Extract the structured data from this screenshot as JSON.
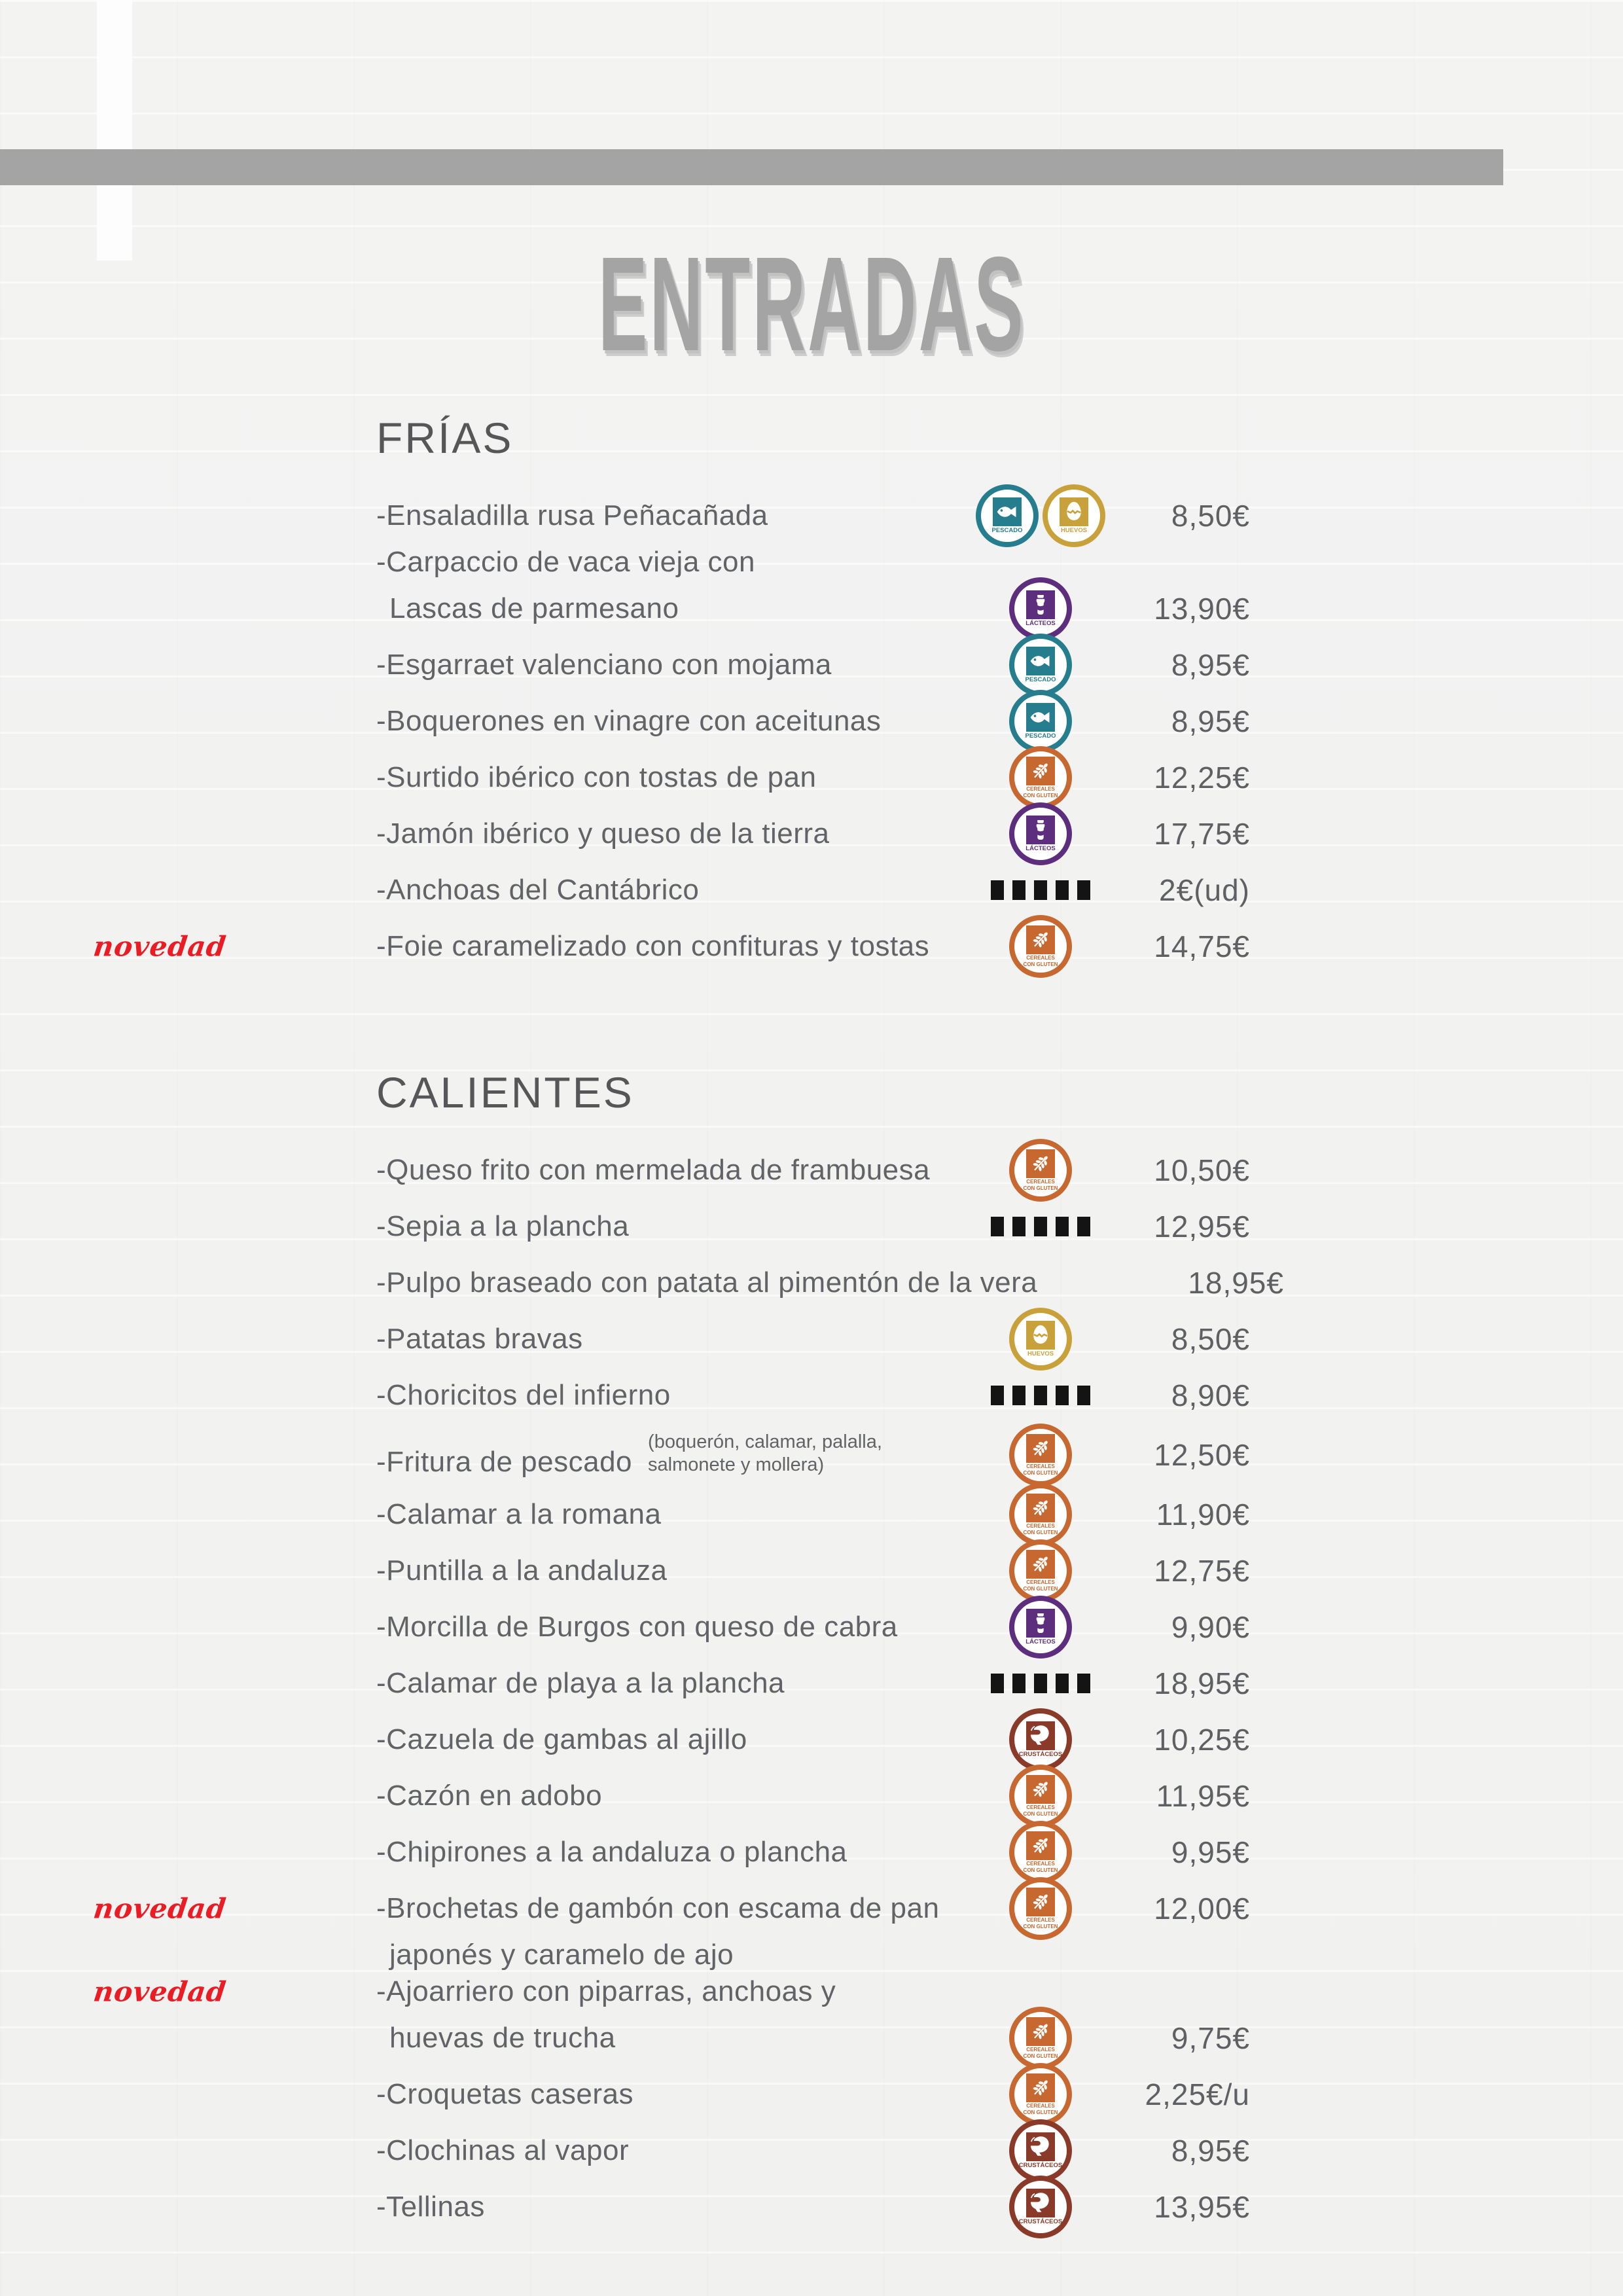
{
  "page": {
    "title": "ENTRADAS"
  },
  "colors": {
    "novedad_red": "#ea1d24",
    "top_bar_gray": "#a4a4a4",
    "title_gray": "#a4a4a4",
    "text_gray": "#616366",
    "pescado": "#257d8e",
    "huevos": "#c9a13b",
    "lacteos": "#5e2e7e",
    "cereales": "#c6682f",
    "crustaceos": "#8a3a28"
  },
  "legend": {
    "pescado": {
      "label": "PESCADO",
      "color": "#257d8e"
    },
    "huevos": {
      "label": "HUEVOS",
      "color": "#c9a13b"
    },
    "lacteos": {
      "label": "LÁCTEOS",
      "color": "#5e2e7e"
    },
    "cereales": {
      "label": "CEREALES",
      "label2": "CON GLUTEN",
      "color": "#c6682f"
    },
    "crustaceos": {
      "label": "CRUSTÁCEOS",
      "color": "#8a3a28"
    }
  },
  "sections": [
    {
      "name": "FRÍAS",
      "items": [
        {
          "name": "-Ensaladilla rusa Peñacañada",
          "allergens": [
            "pescado",
            "huevos"
          ],
          "price": "8,50€"
        },
        {
          "name": "-Carpaccio de vaca vieja con",
          "name2": "Lascas de parmesano",
          "icon_pos": "second",
          "allergens": [
            "lacteos"
          ],
          "price": "13,90€"
        },
        {
          "name": "-Esgarraet valenciano con mojama",
          "allergens": [
            "pescado"
          ],
          "price": "8,95€"
        },
        {
          "name": "-Boquerones en vinagre con aceitunas",
          "allergens": [
            "pescado"
          ],
          "price": "8,95€"
        },
        {
          "name": "-Surtido ibérico con tostas de pan",
          "allergens": [
            "cereales"
          ],
          "price": "12,25€"
        },
        {
          "name": "-Jamón ibérico y queso de la tierra",
          "allergens": [
            "lacteos"
          ],
          "price": "17,75€"
        },
        {
          "name": "-Anchoas del Cantábrico",
          "leader": true,
          "price": "2€(ud)"
        },
        {
          "name": "-Foie caramelizado con confituras y tostas",
          "badge": "novedad",
          "allergens": [
            "cereales"
          ],
          "price": "14,75€"
        }
      ]
    },
    {
      "name": "CALIENTES",
      "items": [
        {
          "name": "-Queso frito con mermelada de frambuesa",
          "allergens": [
            "cereales"
          ],
          "price": "10,50€"
        },
        {
          "name": "-Sepia a la plancha",
          "leader": true,
          "price": "12,95€"
        },
        {
          "name": "-Pulpo braseado con patata al pimentón de la vera",
          "price": "18,95€"
        },
        {
          "name": "-Patatas bravas",
          "allergens": [
            "huevos"
          ],
          "price": "8,50€"
        },
        {
          "name": "-Choricitos del infierno",
          "leader": true,
          "price": "8,90€"
        },
        {
          "name": "-Fritura de pescado",
          "note1": "(boquerón, calamar, palalla,",
          "note2": "salmonete y mollera)",
          "allergens": [
            "cereales"
          ],
          "price": "12,50€"
        },
        {
          "name": "-Calamar a la romana",
          "allergens": [
            "cereales"
          ],
          "price": "11,90€"
        },
        {
          "name": "-Puntilla a la andaluza",
          "allergens": [
            "cereales"
          ],
          "price": "12,75€"
        },
        {
          "name": "-Morcilla de Burgos con queso de cabra",
          "allergens": [
            "lacteos"
          ],
          "price": "9,90€"
        },
        {
          "name": "-Calamar de playa a la plancha",
          "leader": true,
          "price": "18,95€"
        },
        {
          "name": "-Cazuela de gambas al ajillo",
          "allergens": [
            "crustaceos"
          ],
          "price": "10,25€"
        },
        {
          "name": "-Cazón en adobo",
          "allergens": [
            "cereales"
          ],
          "price": "11,95€"
        },
        {
          "name": "-Chipirones a la andaluza o plancha",
          "allergens": [
            "cereales"
          ],
          "price": "9,95€"
        },
        {
          "name": "-Brochetas de gambón con escama de pan",
          "name2": "japonés y caramelo de ajo",
          "icon_pos": "first",
          "badge": "novedad",
          "allergens": [
            "cereales"
          ],
          "price": "12,00€"
        },
        {
          "name": "-Ajoarriero con piparras, anchoas y",
          "name2": "huevas de trucha",
          "icon_pos": "second",
          "badge": "novedad",
          "allergens": [
            "cereales"
          ],
          "price": "9,75€"
        },
        {
          "name": "-Croquetas caseras",
          "allergens": [
            "cereales"
          ],
          "price": "2,25€/u"
        },
        {
          "name": "-Clochinas al vapor",
          "allergens": [
            "crustaceos"
          ],
          "price": "8,95€"
        },
        {
          "name": "-Tellinas",
          "allergens": [
            "crustaceos"
          ],
          "price": "13,95€"
        }
      ]
    }
  ]
}
